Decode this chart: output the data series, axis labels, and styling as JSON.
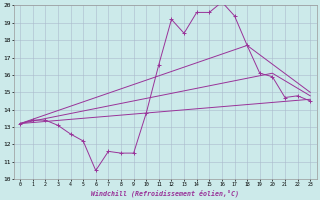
{
  "xlabel": "Windchill (Refroidissement éolien,°C)",
  "ylabel": "",
  "background_color": "#cceaea",
  "grid_color": "#aabbcc",
  "line_color": "#993399",
  "xlim": [
    -0.5,
    23.5
  ],
  "ylim": [
    10,
    20
  ],
  "yticks": [
    10,
    11,
    12,
    13,
    14,
    15,
    16,
    17,
    18,
    19,
    20
  ],
  "xticks": [
    0,
    1,
    2,
    3,
    4,
    5,
    6,
    7,
    8,
    9,
    10,
    11,
    12,
    13,
    14,
    15,
    16,
    17,
    18,
    19,
    20,
    21,
    22,
    23
  ],
  "line1_x": [
    0,
    1,
    2,
    3,
    4,
    5,
    6,
    7,
    8,
    9,
    10,
    11,
    12,
    13,
    14,
    15,
    16,
    17,
    18,
    19,
    20,
    21,
    22,
    23
  ],
  "line1_y": [
    13.2,
    13.4,
    13.4,
    13.1,
    12.6,
    12.2,
    10.5,
    11.6,
    11.5,
    11.5,
    13.8,
    16.6,
    19.2,
    18.4,
    19.6,
    19.6,
    20.2,
    19.4,
    17.7,
    16.1,
    15.9,
    14.7,
    14.8,
    14.5
  ],
  "line2_x": [
    0,
    18,
    23
  ],
  "line2_y": [
    13.2,
    17.7,
    15.0
  ],
  "line3_x": [
    0,
    20,
    23
  ],
  "line3_y": [
    13.2,
    16.1,
    14.8
  ],
  "line4_x": [
    0,
    23
  ],
  "line4_y": [
    13.2,
    14.6
  ]
}
